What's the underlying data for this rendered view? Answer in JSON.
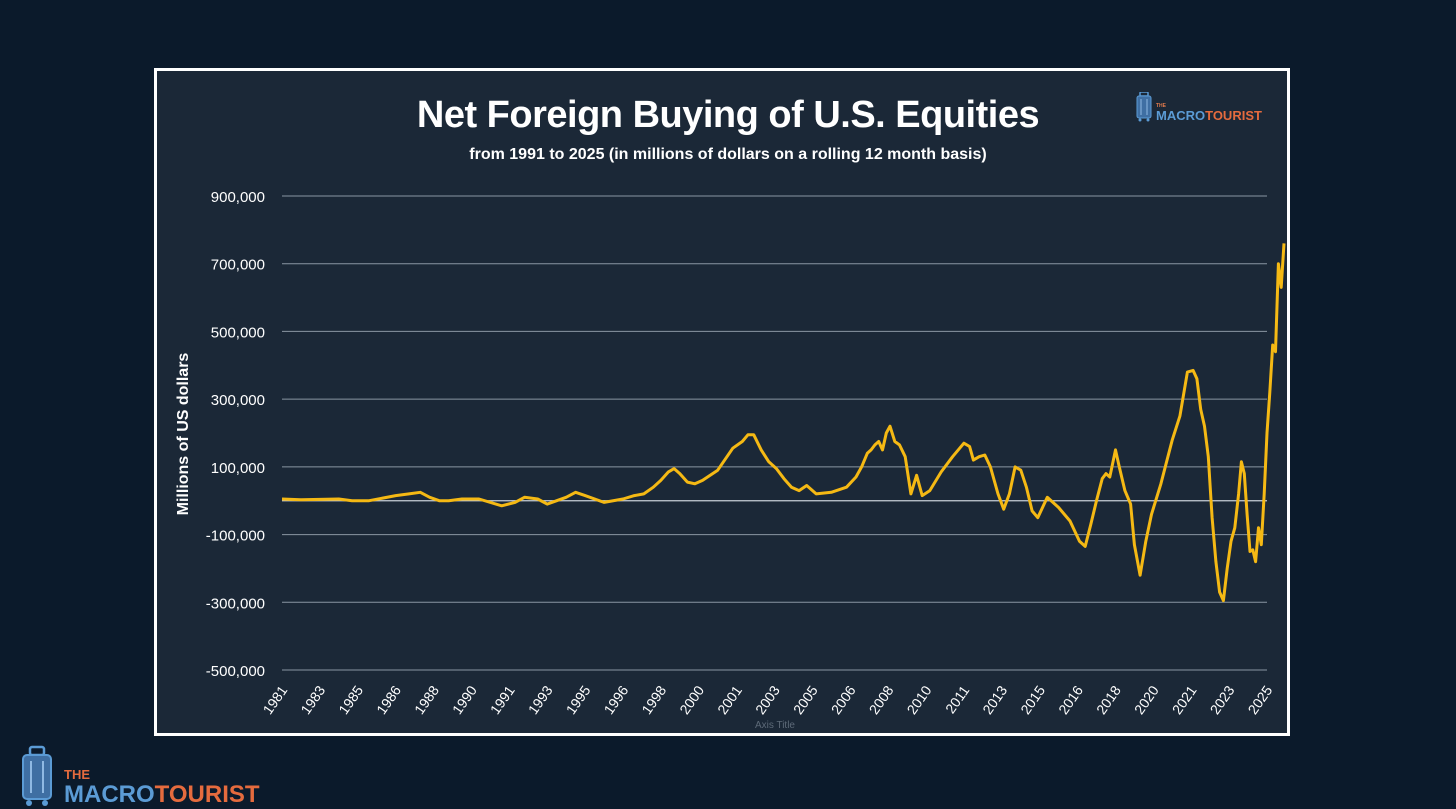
{
  "brand": {
    "the": "THE",
    "macro": "MACRO",
    "tourist": "TOURIST"
  },
  "colors": {
    "background": "#0b1a2b",
    "plot_bg": "#1b2837",
    "line": "#f5b914",
    "grid": "#8a96a3",
    "brand_blue": "#5b9bd5",
    "brand_orange": "#e56b3e"
  },
  "icons": [
    "suitcase-icon"
  ],
  "chart_data": {
    "type": "line",
    "title": "Net Foreign Buying of U.S. Equities",
    "subtitle": "from 1991 to 2025 (in millions of dollars on a rolling 12 month basis)",
    "ylabel": "Millions of US dollars",
    "xlabel": "Axis Title",
    "ylim": [
      -500000,
      900000
    ],
    "yticks": [
      900000,
      700000,
      500000,
      300000,
      100000,
      -100000,
      -300000,
      -500000
    ],
    "ytick_labels": [
      "900,000",
      "700,000",
      "500,000",
      "300,000",
      "100,000",
      "-100,000",
      "-300,000",
      "-500,000"
    ],
    "xticks": [
      "1981",
      "1983",
      "1985",
      "1986",
      "1988",
      "1990",
      "1991",
      "1993",
      "1995",
      "1996",
      "1998",
      "2000",
      "2001",
      "2003",
      "2005",
      "2006",
      "2008",
      "2010",
      "2011",
      "2013",
      "2015",
      "2016",
      "2018",
      "2020",
      "2021",
      "2023",
      "2025"
    ],
    "grid": true,
    "legend": "none",
    "series": [
      {
        "x": [
          1981.0,
          1982.0,
          1983.0,
          1984.0,
          1984.7,
          1985.3,
          1986.0,
          1986.7,
          1987.3,
          1987.8,
          1988.3,
          1988.8,
          1989.5,
          1990.2,
          1990.8,
          1991.3,
          1991.8,
          1992.5,
          1993.0,
          1993.5,
          1994.0,
          1994.5,
          1995.0,
          1995.5,
          1996.0,
          1996.6,
          1997.1,
          1997.6,
          1998.0,
          1998.4,
          1998.7,
          1999.0,
          1999.4,
          1999.8,
          2000.1,
          2000.5,
          2000.9,
          2001.3,
          2001.6,
          2001.9,
          2002.3,
          2002.7,
          2003.1,
          2003.5,
          2003.9,
          2004.3,
          2004.7,
          2005.1,
          2005.5,
          2005.9,
          2006.3,
          2006.6,
          2006.9,
          2007.1,
          2007.3,
          2007.5,
          2007.7,
          2007.9,
          2008.1,
          2008.35,
          2008.6,
          2008.9,
          2009.2,
          2009.5,
          2009.8,
          2010.1,
          2010.4,
          2010.7,
          2011.0,
          2011.3,
          2011.5,
          2011.8,
          2012.1,
          2012.4,
          2012.8,
          2013.1,
          2013.4,
          2013.7,
          2014.0,
          2014.3,
          2014.6,
          2014.9,
          2015.2,
          2015.5,
          2015.8,
          2016.1,
          2016.4,
          2016.7,
          2017.0,
          2017.3,
          2017.5,
          2017.7,
          2018.0,
          2018.2,
          2018.5,
          2018.8,
          2019.0,
          2019.3,
          2019.6,
          2019.9,
          2020.2,
          2020.5,
          2020.7,
          2020.9,
          2021.1,
          2021.3,
          2021.5,
          2021.7,
          2021.9,
          2022.1,
          2022.3,
          2022.5,
          2022.7,
          2022.9,
          2023.1,
          2023.3,
          2023.5,
          2023.65,
          2023.8,
          2023.95,
          2024.1,
          2024.25,
          2024.4,
          2024.55,
          2024.7,
          2024.85,
          2025.0,
          2025.15,
          2025.3,
          2025.45,
          2025.6,
          2025.75,
          2025.9
        ],
        "y": [
          5000,
          3000,
          4000,
          5000,
          0,
          0,
          15000,
          20000,
          25000,
          10000,
          0,
          0,
          5000,
          5000,
          -15000,
          -5000,
          10000,
          5000,
          -10000,
          0,
          10000,
          25000,
          15000,
          -5000,
          5000,
          15000,
          20000,
          40000,
          60000,
          85000,
          95000,
          80000,
          55000,
          50000,
          60000,
          90000,
          155000,
          175000,
          195000,
          195000,
          150000,
          115000,
          95000,
          65000,
          40000,
          30000,
          45000,
          20000,
          25000,
          40000,
          70000,
          100000,
          140000,
          150000,
          165000,
          175000,
          150000,
          200000,
          220000,
          175000,
          165000,
          130000,
          20000,
          75000,
          15000,
          30000,
          85000,
          130000,
          170000,
          160000,
          120000,
          130000,
          135000,
          100000,
          20000,
          -25000,
          20000,
          100000,
          90000,
          40000,
          -30000,
          -50000,
          10000,
          -20000,
          -60000,
          -120000,
          -135000,
          -70000,
          0,
          65000,
          80000,
          70000,
          150000,
          100000,
          30000,
          -10000,
          -130000,
          -220000,
          -120000,
          -40000,
          50000,
          180000,
          250000,
          380000,
          385000,
          360000,
          270000,
          220000,
          130000,
          -50000,
          -180000,
          -270000,
          -295000,
          -200000,
          -120000,
          -80000,
          20000,
          115000,
          80000,
          -40000,
          -150000,
          -145000,
          -180000,
          -80000,
          -130000,
          20000,
          200000,
          320000,
          460000,
          440000,
          700000,
          630000,
          760000
        ]
      }
    ]
  }
}
